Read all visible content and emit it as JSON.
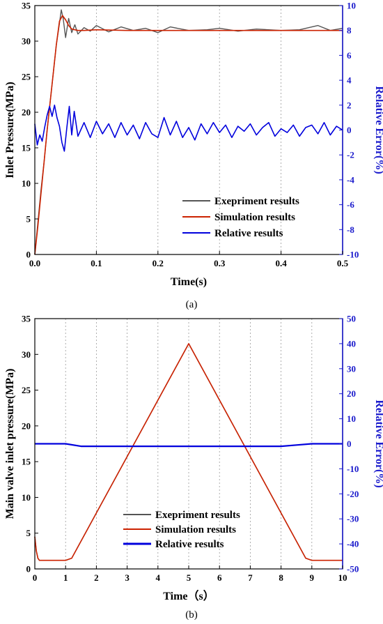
{
  "colors": {
    "experiment": "#555555",
    "simulation": "#cc2200",
    "relative": "#0000dd",
    "right_axis": "#1a1acc",
    "grid": "#999999"
  },
  "chart_data": [
    {
      "type": "line",
      "caption": "(a)",
      "xlabel": "Time(s)",
      "ylabel": "Inlet Pressure(MPa)",
      "y2label": "Relative Error(%)",
      "xlim": [
        0,
        0.5
      ],
      "ylim": [
        0,
        35
      ],
      "y2lim": [
        -10,
        10
      ],
      "xticks": [
        "0.0",
        "0.1",
        "0.2",
        "0.3",
        "0.4",
        "0.5"
      ],
      "yticks": [
        "0",
        "5",
        "10",
        "15",
        "20",
        "25",
        "30",
        "35"
      ],
      "y2ticks": [
        "-10",
        "-8",
        "-6",
        "-4",
        "-2",
        "0",
        "2",
        "4",
        "6",
        "8",
        "10"
      ],
      "grid": "vertical dashed",
      "legend_position": "bottom-right",
      "series": [
        {
          "name": "Exepriment results",
          "axis": "left",
          "x": [
            0,
            0.005,
            0.01,
            0.015,
            0.02,
            0.025,
            0.03,
            0.035,
            0.04,
            0.043,
            0.046,
            0.05,
            0.055,
            0.06,
            0.065,
            0.07,
            0.08,
            0.09,
            0.1,
            0.12,
            0.14,
            0.16,
            0.18,
            0.2,
            0.22,
            0.25,
            0.28,
            0.3,
            0.33,
            0.36,
            0.4,
            0.43,
            0.46,
            0.48,
            0.5
          ],
          "y": [
            0,
            4.5,
            9,
            13,
            17.5,
            21.5,
            25.5,
            29.5,
            32.5,
            34.4,
            33.2,
            30.5,
            33.2,
            31.2,
            32.3,
            31,
            31.9,
            31.4,
            32.2,
            31.3,
            32,
            31.5,
            31.8,
            31.2,
            32,
            31.5,
            31.6,
            31.8,
            31.4,
            31.7,
            31.5,
            31.6,
            32.2,
            31.5,
            31.8
          ]
        },
        {
          "name": "Simulation results",
          "axis": "left",
          "x": [
            0,
            0.005,
            0.01,
            0.015,
            0.02,
            0.025,
            0.03,
            0.035,
            0.04,
            0.045,
            0.05,
            0.055,
            0.06,
            0.065,
            0.07,
            0.08,
            0.1,
            0.15,
            0.2,
            0.3,
            0.4,
            0.5
          ],
          "y": [
            0,
            4,
            8.5,
            13,
            17.5,
            21.5,
            25.5,
            29.5,
            32.8,
            33.6,
            33,
            32.2,
            31.7,
            31.6,
            31.5,
            31.5,
            31.6,
            31.5,
            31.5,
            31.5,
            31.5,
            31.5
          ]
        },
        {
          "name": "Relative results",
          "axis": "right",
          "x": [
            0,
            0.004,
            0.008,
            0.012,
            0.016,
            0.02,
            0.024,
            0.028,
            0.032,
            0.036,
            0.04,
            0.044,
            0.048,
            0.052,
            0.056,
            0.06,
            0.064,
            0.07,
            0.08,
            0.09,
            0.1,
            0.11,
            0.12,
            0.13,
            0.14,
            0.15,
            0.16,
            0.17,
            0.18,
            0.19,
            0.2,
            0.21,
            0.22,
            0.23,
            0.24,
            0.25,
            0.26,
            0.27,
            0.28,
            0.29,
            0.3,
            0.31,
            0.32,
            0.33,
            0.34,
            0.35,
            0.36,
            0.37,
            0.38,
            0.39,
            0.4,
            0.41,
            0.42,
            0.43,
            0.44,
            0.45,
            0.46,
            0.47,
            0.48,
            0.49,
            0.5
          ],
          "y": [
            0.5,
            -1.2,
            -0.4,
            -0.9,
            0.2,
            1.2,
            1.9,
            1.1,
            2,
            1,
            0.3,
            -1,
            -1.7,
            0.2,
            1.9,
            -0.4,
            1.5,
            -0.5,
            0.6,
            -0.6,
            0.7,
            -0.3,
            0.5,
            -0.6,
            0.6,
            -0.4,
            0.4,
            -0.7,
            0.6,
            -0.3,
            -0.6,
            1,
            -0.4,
            0.7,
            -0.6,
            0.2,
            -0.8,
            0.5,
            -0.3,
            0.6,
            -0.2,
            0.4,
            -0.6,
            0.3,
            -0.1,
            0.5,
            -0.4,
            0.2,
            0.6,
            -0.5,
            0.1,
            -0.2,
            0.4,
            -0.5,
            0.2,
            0.4,
            -0.3,
            0.6,
            -0.4,
            0.3,
            0
          ]
        }
      ]
    },
    {
      "type": "line",
      "caption": "(b)",
      "xlabel": "Time（s）",
      "ylabel": "Main valve inlet pressure(MPa)",
      "y2label": "Relative Error(%)",
      "xlim": [
        0,
        10
      ],
      "ylim": [
        0,
        35
      ],
      "y2lim": [
        -50,
        50
      ],
      "xticks": [
        "0",
        "1",
        "2",
        "3",
        "4",
        "5",
        "6",
        "7",
        "8",
        "9",
        "10"
      ],
      "yticks": [
        "0",
        "5",
        "10",
        "15",
        "20",
        "25",
        "30",
        "35"
      ],
      "y2ticks": [
        "-50",
        "-40",
        "-30",
        "-20",
        "-10",
        "0",
        "10",
        "20",
        "30",
        "40",
        "50"
      ],
      "grid": "vertical dashed",
      "legend_position": "bottom-center",
      "series": [
        {
          "name": "Exepriment results",
          "axis": "left",
          "x": [
            0,
            0.05,
            0.1,
            0.15,
            0.2,
            1,
            1.2,
            5,
            8.8,
            9,
            10
          ],
          "y": [
            4.5,
            2.5,
            1.5,
            1.2,
            1.2,
            1.2,
            1.5,
            31.5,
            1.5,
            1.2,
            1.2
          ]
        },
        {
          "name": "Simulation results",
          "axis": "left",
          "x": [
            0,
            0.05,
            0.1,
            0.15,
            0.2,
            1,
            1.2,
            5,
            8.8,
            9,
            10
          ],
          "y": [
            4.5,
            2.5,
            1.5,
            1.2,
            1.2,
            1.2,
            1.5,
            31.5,
            1.5,
            1.2,
            1.2
          ]
        },
        {
          "name": "Relative results",
          "axis": "right",
          "x": [
            0,
            1,
            1.5,
            2,
            2.5,
            3,
            3.5,
            4,
            4.5,
            5,
            5.5,
            6,
            6.5,
            7,
            7.5,
            8,
            8.5,
            9,
            10
          ],
          "y": [
            0,
            0,
            -1,
            -1,
            -1,
            -1,
            -1,
            -1,
            -1,
            -1,
            -1,
            -1,
            -1,
            -1,
            -1,
            -1,
            -0.5,
            0,
            0
          ]
        }
      ]
    }
  ]
}
